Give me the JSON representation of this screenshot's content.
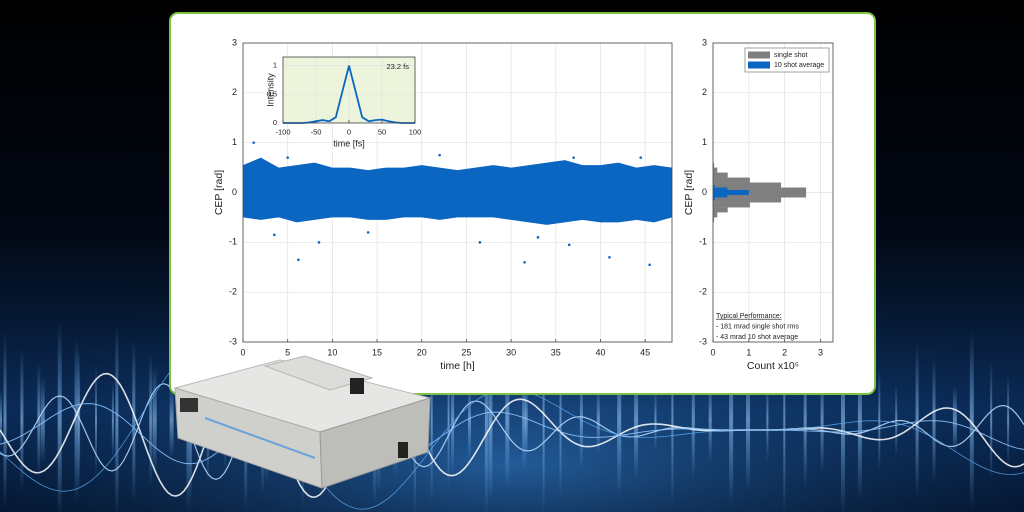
{
  "chart_data": [
    {
      "type": "scatter",
      "xlabel": "time [h]",
      "ylabel": "CEP [rad]",
      "xlim": [
        0,
        48
      ],
      "xticks": [
        0,
        5,
        10,
        15,
        20,
        25,
        30,
        35,
        40,
        45
      ],
      "ylim": [
        -3,
        3
      ],
      "yticks": [
        -3,
        -2,
        -1,
        0,
        1,
        2,
        3
      ],
      "grid": true,
      "color": "#0b66c2",
      "band": {
        "x": [
          0,
          2,
          4,
          6,
          8,
          10,
          12,
          14,
          16,
          18,
          20,
          22,
          24,
          26,
          28,
          30,
          32,
          34,
          36,
          38,
          40,
          42,
          44,
          46,
          48
        ],
        "upper": [
          0.55,
          0.7,
          0.5,
          0.55,
          0.6,
          0.5,
          0.5,
          0.45,
          0.5,
          0.5,
          0.55,
          0.5,
          0.45,
          0.5,
          0.55,
          0.5,
          0.55,
          0.6,
          0.65,
          0.55,
          0.55,
          0.6,
          0.5,
          0.55,
          0.5
        ],
        "lower": [
          -0.5,
          -0.55,
          -0.5,
          -0.6,
          -0.55,
          -0.5,
          -0.5,
          -0.55,
          -0.55,
          -0.5,
          -0.5,
          -0.55,
          -0.5,
          -0.5,
          -0.5,
          -0.55,
          -0.6,
          -0.65,
          -0.6,
          -0.55,
          -0.6,
          -0.6,
          -0.55,
          -0.6,
          -0.5
        ]
      },
      "x": [
        1.2,
        5,
        6.2,
        8.5,
        26.5,
        31.5,
        36.5,
        37,
        41,
        44.5,
        45.5,
        3.5,
        14,
        22,
        33
      ],
      "y": [
        1.0,
        0.7,
        -1.35,
        -1.0,
        -1.0,
        -1.4,
        -1.05,
        0.7,
        -1.3,
        0.7,
        -1.45,
        -0.85,
        -0.8,
        0.75,
        -0.9
      ]
    },
    {
      "type": "line",
      "xlabel": "time [fs]",
      "ylabel": "Intensity",
      "annotation": "23.2 fs",
      "xlim": [
        -100,
        100
      ],
      "xticks": [
        -100,
        -50,
        0,
        50,
        100
      ],
      "ylim": [
        0,
        1.15
      ],
      "yticks": [
        0,
        0.5,
        1
      ],
      "grid": true,
      "color": "#0b66c2",
      "background": "#ecf4dc",
      "x": [
        -100,
        -90,
        -80,
        -70,
        -60,
        -50,
        -40,
        -30,
        -20,
        -10,
        0,
        10,
        20,
        30,
        40,
        50,
        60,
        70,
        80,
        90,
        100
      ],
      "y": [
        0,
        0,
        0,
        0,
        0.01,
        0.03,
        0.05,
        0.03,
        0.1,
        0.55,
        1,
        0.55,
        0.1,
        0.03,
        0.05,
        0.06,
        0.03,
        0.01,
        0,
        0,
        0
      ]
    },
    {
      "type": "histogram",
      "orientation": "horizontal",
      "xlabel": "Count x10⁵",
      "ylabel": "CEP [rad]",
      "xlim": [
        0,
        3.35
      ],
      "xticks": [
        0,
        1,
        2,
        3
      ],
      "ylim": [
        -3,
        3
      ],
      "yticks": [
        -3,
        -2,
        -1,
        0,
        1,
        2,
        3
      ],
      "grid": true,
      "legend": "upper right",
      "series": [
        {
          "name": "single shot",
          "color": "#7f7f7f",
          "bins": [
            -0.6,
            -0.5,
            -0.4,
            -0.3,
            -0.2,
            -0.1,
            0,
            0.1,
            0.2,
            0.3,
            0.4,
            0.5,
            0.6
          ],
          "values": [
            0.03,
            0.12,
            0.41,
            1.03,
            1.9,
            2.6,
            2.6,
            1.9,
            1.03,
            0.41,
            0.12,
            0.03
          ]
        },
        {
          "name": "10 shot average",
          "color": "#0b66c2",
          "bins": [
            -0.15,
            -0.1,
            -0.05,
            0,
            0.05,
            0.1,
            0.15
          ],
          "values": [
            0.05,
            0.4,
            1.0,
            1.0,
            0.4,
            0.05
          ]
        }
      ],
      "annotations": [
        "Typical Performance:",
        "- 181 mrad single shot rms",
        "-   43 mrad 10 shot average"
      ]
    }
  ]
}
